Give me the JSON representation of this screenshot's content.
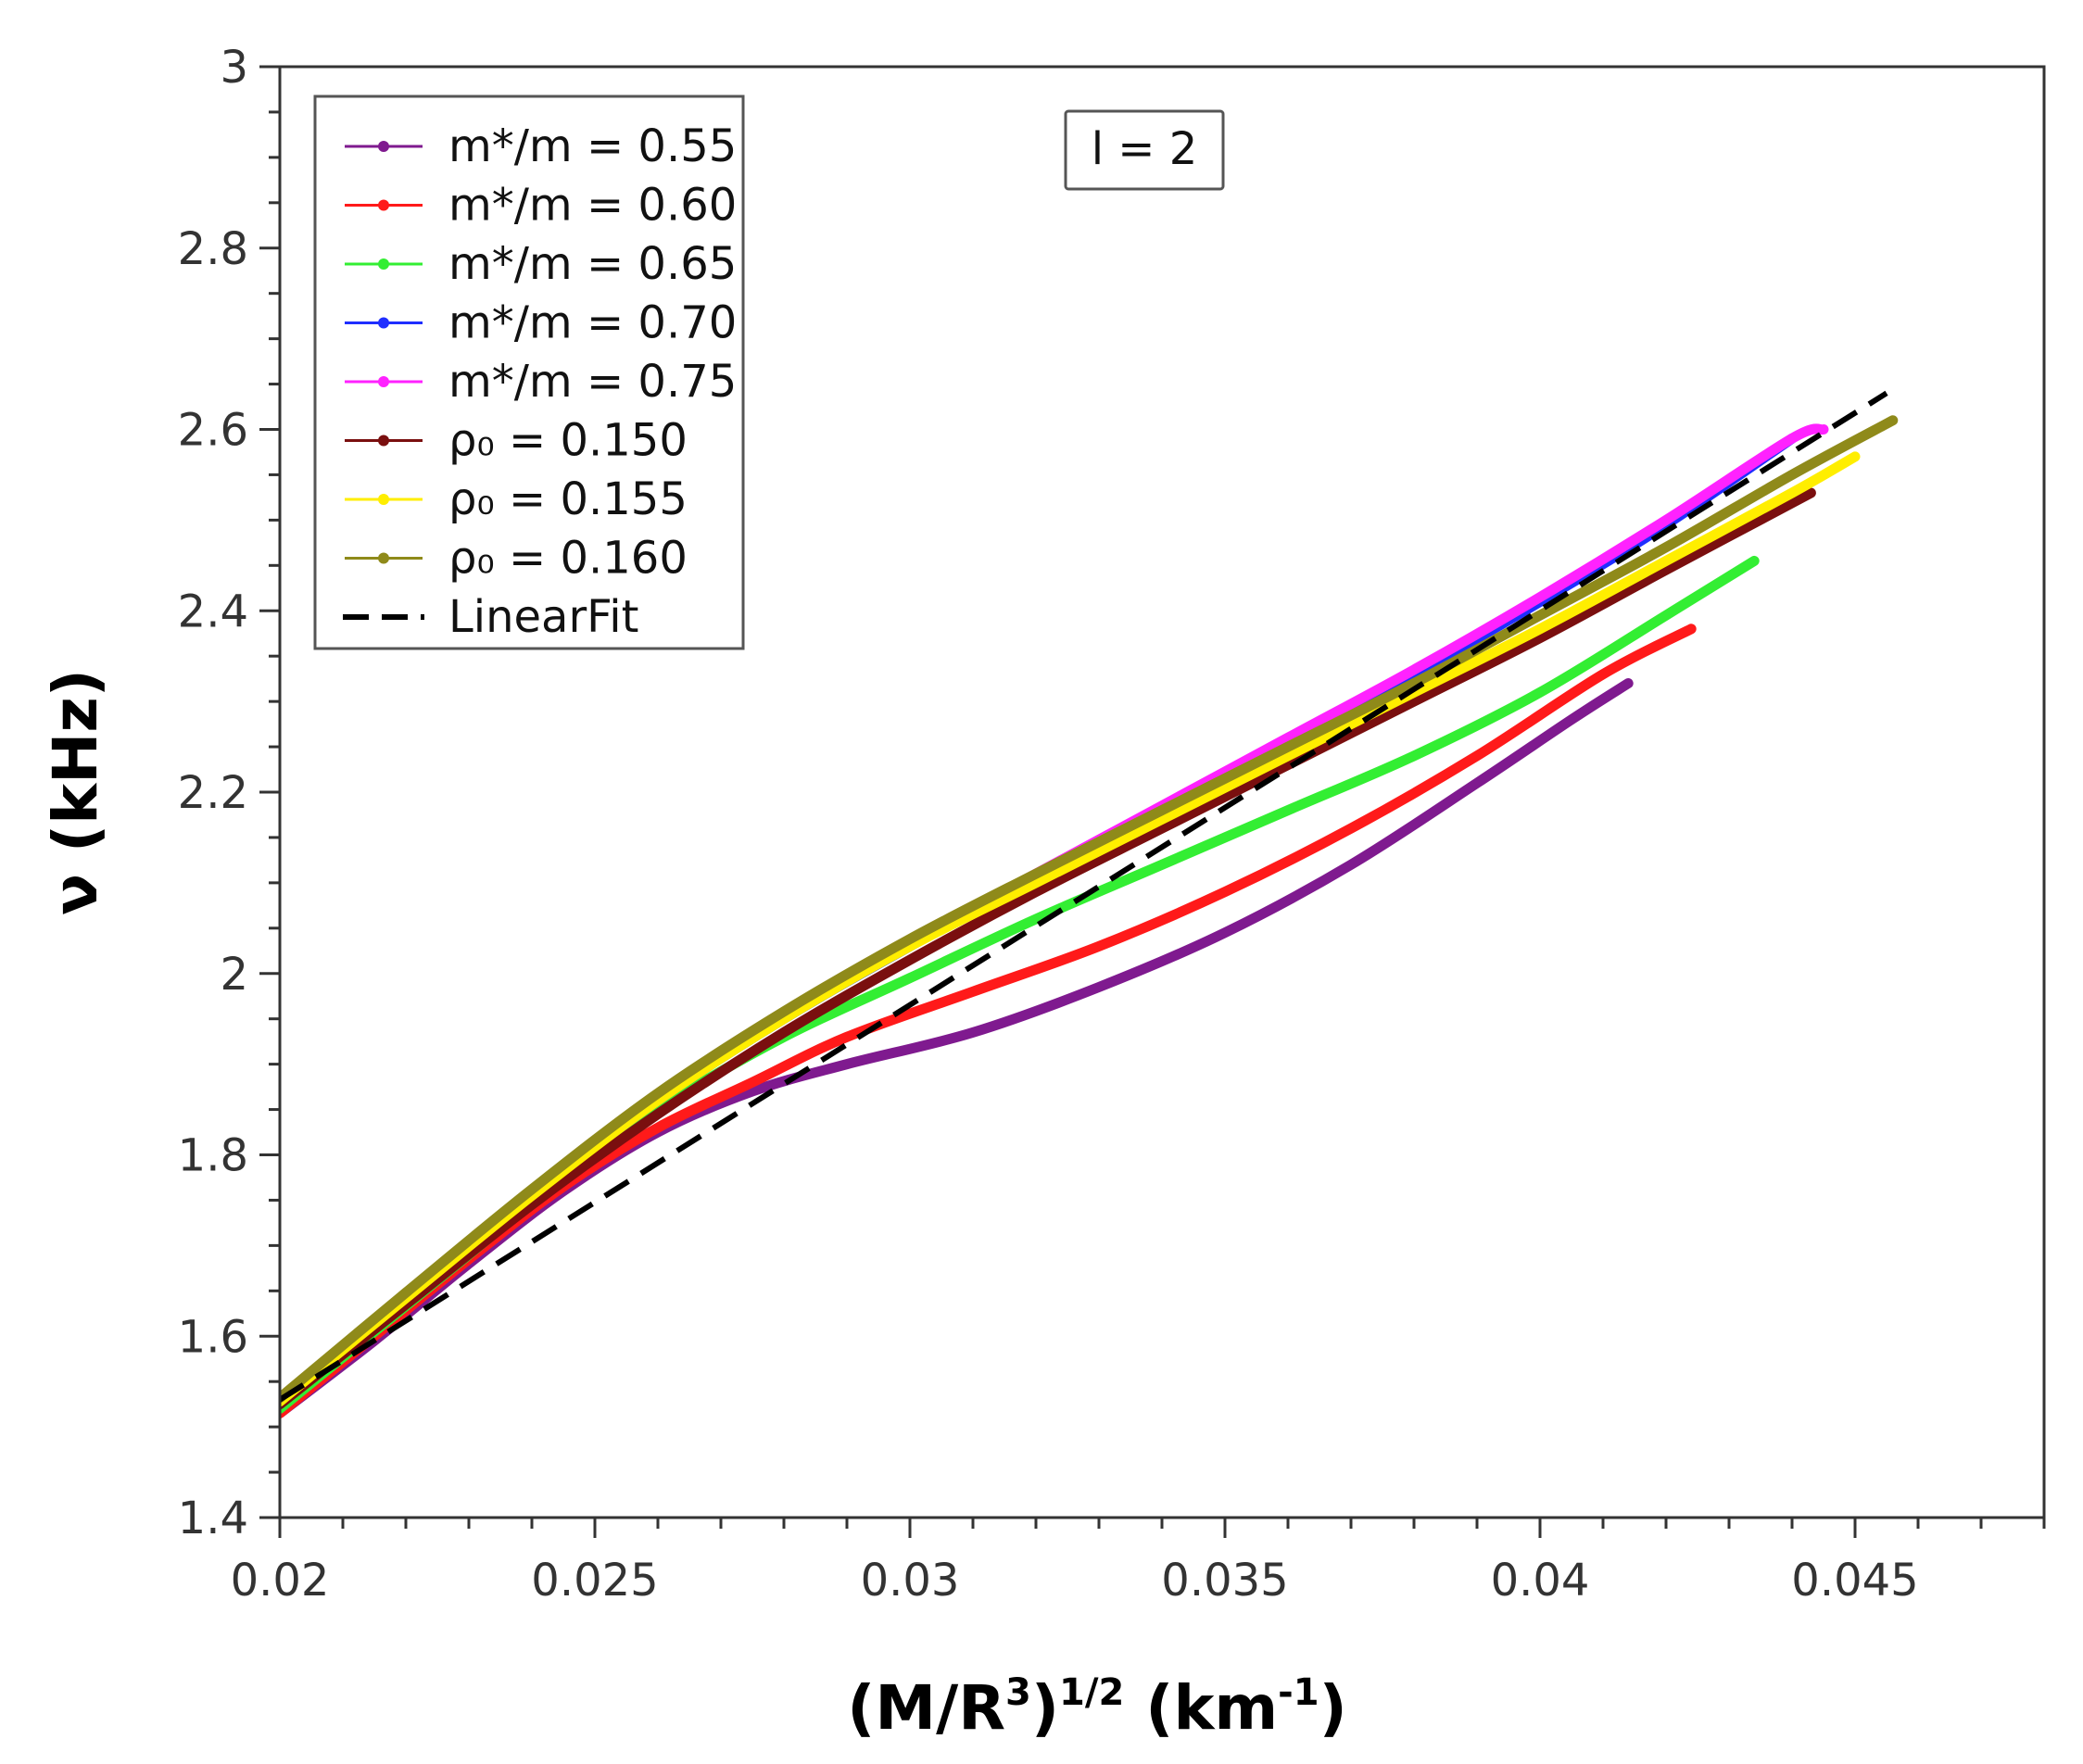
{
  "chart_data": {
    "type": "line",
    "title": "",
    "xlabel": "(M/R³)¹ᐟ² (km⁻¹)",
    "xlabel_parts": {
      "base": "(M/R",
      "sup1": "3",
      "mid": ")",
      "sup2": "1/2",
      "unit_open": " (km",
      "sup3": "-1",
      "unit_close": ")"
    },
    "ylabel": "ν (kHz)",
    "xlim": [
      0.02,
      0.048
    ],
    "ylim": [
      1.4,
      3.0
    ],
    "x_ticks": [
      0.02,
      0.025,
      0.03,
      0.035,
      0.04,
      0.045
    ],
    "x_tick_labels": [
      "0.02",
      "0.025",
      "0.03",
      "0.035",
      "0.04",
      "0.045"
    ],
    "y_ticks": [
      1.4,
      1.6,
      1.8,
      2.0,
      2.2,
      2.4,
      2.6,
      2.8,
      3.0
    ],
    "y_tick_labels": [
      "1.4",
      "1.6",
      "1.8",
      "2",
      "2.2",
      "2.4",
      "2.6",
      "2.8",
      "3"
    ],
    "grid": false,
    "legend_position": "top-left",
    "annotation": "l = 2",
    "series": [
      {
        "name": "m*/m = 0.55",
        "color": "#7f1a8f",
        "x": [
          0.02,
          0.0215,
          0.023,
          0.0245,
          0.026,
          0.0275,
          0.029,
          0.031,
          0.033,
          0.035,
          0.037,
          0.039,
          0.0405,
          0.0414
        ],
        "y": [
          1.515,
          1.595,
          1.68,
          1.76,
          1.825,
          1.87,
          1.9,
          1.935,
          1.985,
          2.045,
          2.12,
          2.21,
          2.28,
          2.32
        ]
      },
      {
        "name": "m*/m = 0.60",
        "color": "#ff1a1a",
        "x": [
          0.02,
          0.0215,
          0.023,
          0.0245,
          0.026,
          0.0275,
          0.029,
          0.031,
          0.033,
          0.035,
          0.037,
          0.039,
          0.041,
          0.0424
        ],
        "y": [
          1.515,
          1.6,
          1.685,
          1.765,
          1.83,
          1.88,
          1.93,
          1.98,
          2.03,
          2.09,
          2.16,
          2.24,
          2.33,
          2.38
        ]
      },
      {
        "name": "m*/m = 0.65",
        "color": "#33ee33",
        "x": [
          0.02,
          0.0215,
          0.023,
          0.0245,
          0.026,
          0.028,
          0.03,
          0.032,
          0.034,
          0.036,
          0.038,
          0.04,
          0.042,
          0.0434
        ],
        "y": [
          1.52,
          1.605,
          1.69,
          1.775,
          1.85,
          1.93,
          1.995,
          2.06,
          2.12,
          2.18,
          2.24,
          2.31,
          2.395,
          2.455
        ]
      },
      {
        "name": "m*/m = 0.70",
        "color": "#1f2eff",
        "x": [
          0.02,
          0.022,
          0.024,
          0.026,
          0.028,
          0.03,
          0.032,
          0.034,
          0.036,
          0.038,
          0.04,
          0.042,
          0.044
        ],
        "y": [
          1.525,
          1.64,
          1.755,
          1.86,
          1.95,
          2.03,
          2.105,
          2.18,
          2.255,
          2.33,
          2.41,
          2.495,
          2.59
        ]
      },
      {
        "name": "m*/m = 0.75",
        "color": "#ff22ff",
        "x": [
          0.02,
          0.022,
          0.024,
          0.026,
          0.028,
          0.03,
          0.032,
          0.034,
          0.036,
          0.038,
          0.04,
          0.042,
          0.044,
          0.0445
        ],
        "y": [
          1.53,
          1.645,
          1.76,
          1.865,
          1.955,
          2.035,
          2.11,
          2.185,
          2.26,
          2.335,
          2.415,
          2.5,
          2.59,
          2.6
        ]
      },
      {
        "name": "ρ₀ = 0.150",
        "color": "#7a0f0f",
        "x": [
          0.02,
          0.022,
          0.024,
          0.026,
          0.028,
          0.03,
          0.032,
          0.034,
          0.036,
          0.038,
          0.04,
          0.042,
          0.0443
        ],
        "y": [
          1.525,
          1.635,
          1.745,
          1.845,
          1.935,
          2.015,
          2.09,
          2.16,
          2.23,
          2.3,
          2.37,
          2.445,
          2.53
        ]
      },
      {
        "name": "ρ₀ = 0.155",
        "color": "#ffee00",
        "x": [
          0.02,
          0.022,
          0.024,
          0.026,
          0.028,
          0.03,
          0.032,
          0.034,
          0.036,
          0.038,
          0.04,
          0.042,
          0.044,
          0.045
        ],
        "y": [
          1.528,
          1.642,
          1.755,
          1.86,
          1.95,
          2.03,
          2.1,
          2.17,
          2.24,
          2.31,
          2.38,
          2.455,
          2.53,
          2.57
        ]
      },
      {
        "name": "ρ₀ = 0.160",
        "color": "#8f8a1a",
        "x": [
          0.02,
          0.022,
          0.024,
          0.026,
          0.028,
          0.03,
          0.032,
          0.034,
          0.036,
          0.038,
          0.04,
          0.042,
          0.044,
          0.0456
        ],
        "y": [
          1.532,
          1.648,
          1.762,
          1.868,
          1.958,
          2.038,
          2.11,
          2.18,
          2.25,
          2.32,
          2.395,
          2.47,
          2.55,
          2.61
        ]
      },
      {
        "name": "LinearFit",
        "color": "#000000",
        "dashed": true,
        "x": [
          0.02,
          0.0455
        ],
        "y": [
          1.53,
          2.64
        ]
      }
    ]
  }
}
